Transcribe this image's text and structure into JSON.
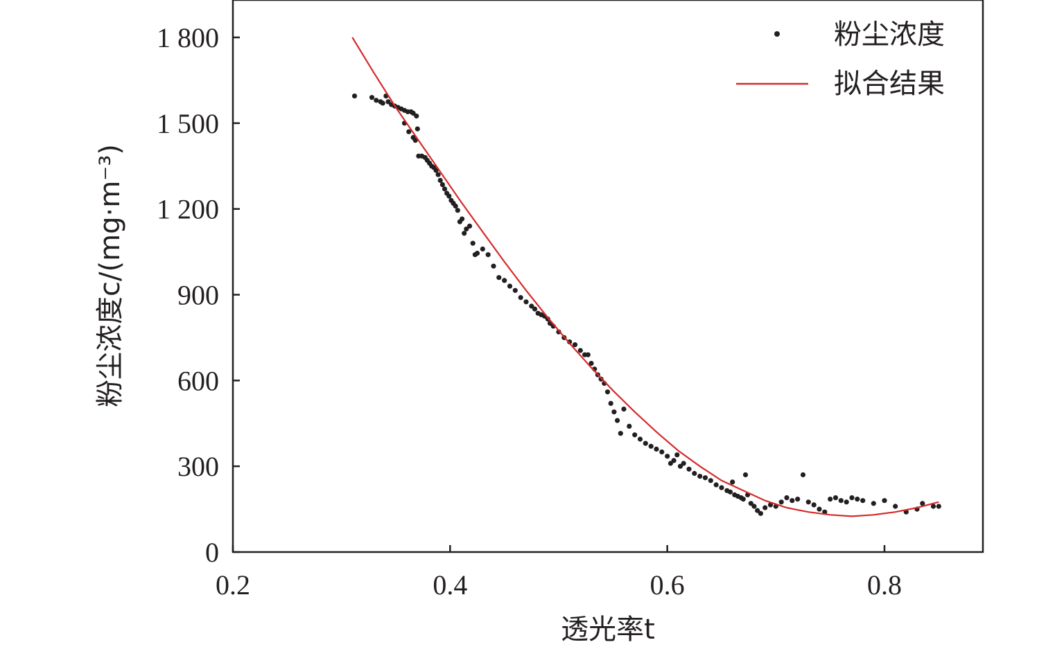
{
  "chart_data": {
    "type": "scatter",
    "xlabel": "透光率t",
    "ylabel": "粉尘浓度c/(mg·m⁻³)",
    "xlim": [
      0.2,
      0.9
    ],
    "ylim": [
      0,
      1950
    ],
    "x_ticks": [
      0.2,
      0.4,
      0.6,
      0.8
    ],
    "x_tick_labels": [
      "0.2",
      "0.4",
      "0.6",
      "0.8"
    ],
    "y_ticks": [
      0,
      300,
      600,
      900,
      1200,
      1500,
      1800
    ],
    "y_tick_labels": [
      "0",
      "300",
      "600",
      "900",
      "1 200",
      "1 500",
      "1 800"
    ],
    "legend": {
      "position": "top-right",
      "entries": [
        {
          "label": "粉尘浓度",
          "marker": "dot",
          "color": "#231f20"
        },
        {
          "label": "拟合结果",
          "marker": "line",
          "color": "#d62a2a"
        }
      ]
    },
    "grid": false,
    "series": [
      {
        "name": "粉尘浓度",
        "kind": "scatter",
        "color": "#231f20",
        "points": [
          [
            0.312,
            1595
          ],
          [
            0.328,
            1590
          ],
          [
            0.332,
            1580
          ],
          [
            0.336,
            1575
          ],
          [
            0.338,
            1570
          ],
          [
            0.341,
            1595
          ],
          [
            0.343,
            1575
          ],
          [
            0.346,
            1565
          ],
          [
            0.349,
            1560
          ],
          [
            0.352,
            1555
          ],
          [
            0.355,
            1550
          ],
          [
            0.358,
            1545
          ],
          [
            0.361,
            1540
          ],
          [
            0.364,
            1540
          ],
          [
            0.366,
            1535
          ],
          [
            0.369,
            1525
          ],
          [
            0.37,
            1480
          ],
          [
            0.358,
            1500
          ],
          [
            0.362,
            1470
          ],
          [
            0.366,
            1450
          ],
          [
            0.368,
            1440
          ],
          [
            0.371,
            1385
          ],
          [
            0.374,
            1385
          ],
          [
            0.377,
            1380
          ],
          [
            0.379,
            1370
          ],
          [
            0.381,
            1360
          ],
          [
            0.383,
            1350
          ],
          [
            0.385,
            1345
          ],
          [
            0.387,
            1335
          ],
          [
            0.389,
            1320
          ],
          [
            0.391,
            1300
          ],
          [
            0.393,
            1285
          ],
          [
            0.395,
            1270
          ],
          [
            0.397,
            1255
          ],
          [
            0.399,
            1245
          ],
          [
            0.401,
            1230
          ],
          [
            0.403,
            1220
          ],
          [
            0.405,
            1210
          ],
          [
            0.407,
            1195
          ],
          [
            0.409,
            1155
          ],
          [
            0.411,
            1165
          ],
          [
            0.413,
            1115
          ],
          [
            0.415,
            1130
          ],
          [
            0.418,
            1140
          ],
          [
            0.421,
            1080
          ],
          [
            0.423,
            1040
          ],
          [
            0.425,
            1045
          ],
          [
            0.43,
            1060
          ],
          [
            0.435,
            1040
          ],
          [
            0.44,
            1000
          ],
          [
            0.445,
            960
          ],
          [
            0.45,
            950
          ],
          [
            0.455,
            930
          ],
          [
            0.46,
            915
          ],
          [
            0.465,
            890
          ],
          [
            0.47,
            875
          ],
          [
            0.475,
            860
          ],
          [
            0.478,
            850
          ],
          [
            0.481,
            835
          ],
          [
            0.484,
            830
          ],
          [
            0.487,
            825
          ],
          [
            0.49,
            815
          ],
          [
            0.492,
            800
          ],
          [
            0.495,
            790
          ],
          [
            0.5,
            770
          ],
          [
            0.505,
            750
          ],
          [
            0.51,
            735
          ],
          [
            0.515,
            725
          ],
          [
            0.52,
            705
          ],
          [
            0.524,
            690
          ],
          [
            0.527,
            690
          ],
          [
            0.53,
            660
          ],
          [
            0.533,
            640
          ],
          [
            0.536,
            620
          ],
          [
            0.539,
            605
          ],
          [
            0.542,
            590
          ],
          [
            0.545,
            560
          ],
          [
            0.548,
            520
          ],
          [
            0.551,
            490
          ],
          [
            0.554,
            460
          ],
          [
            0.557,
            415
          ],
          [
            0.56,
            500
          ],
          [
            0.565,
            440
          ],
          [
            0.57,
            410
          ],
          [
            0.575,
            395
          ],
          [
            0.58,
            380
          ],
          [
            0.585,
            370
          ],
          [
            0.59,
            360
          ],
          [
            0.595,
            350
          ],
          [
            0.6,
            335
          ],
          [
            0.603,
            310
          ],
          [
            0.606,
            320
          ],
          [
            0.609,
            340
          ],
          [
            0.612,
            300
          ],
          [
            0.615,
            310
          ],
          [
            0.62,
            290
          ],
          [
            0.625,
            275
          ],
          [
            0.63,
            265
          ],
          [
            0.635,
            260
          ],
          [
            0.64,
            250
          ],
          [
            0.645,
            235
          ],
          [
            0.65,
            225
          ],
          [
            0.655,
            215
          ],
          [
            0.658,
            210
          ],
          [
            0.66,
            245
          ],
          [
            0.662,
            200
          ],
          [
            0.665,
            195
          ],
          [
            0.668,
            190
          ],
          [
            0.67,
            185
          ],
          [
            0.672,
            270
          ],
          [
            0.674,
            200
          ],
          [
            0.677,
            170
          ],
          [
            0.68,
            160
          ],
          [
            0.683,
            145
          ],
          [
            0.686,
            135
          ],
          [
            0.69,
            155
          ],
          [
            0.695,
            165
          ],
          [
            0.7,
            160
          ],
          [
            0.705,
            175
          ],
          [
            0.71,
            190
          ],
          [
            0.715,
            180
          ],
          [
            0.72,
            185
          ],
          [
            0.725,
            270
          ],
          [
            0.73,
            175
          ],
          [
            0.735,
            165
          ],
          [
            0.74,
            150
          ],
          [
            0.745,
            140
          ],
          [
            0.75,
            185
          ],
          [
            0.755,
            190
          ],
          [
            0.76,
            180
          ],
          [
            0.765,
            175
          ],
          [
            0.77,
            190
          ],
          [
            0.775,
            185
          ],
          [
            0.78,
            180
          ],
          [
            0.79,
            170
          ],
          [
            0.8,
            180
          ],
          [
            0.81,
            160
          ],
          [
            0.82,
            140
          ],
          [
            0.83,
            150
          ],
          [
            0.835,
            170
          ],
          [
            0.845,
            160
          ],
          [
            0.85,
            160
          ]
        ]
      },
      {
        "name": "拟合结果",
        "kind": "line",
        "color": "#d62a2a",
        "x": [
          0.31,
          0.33,
          0.35,
          0.37,
          0.39,
          0.41,
          0.43,
          0.45,
          0.47,
          0.49,
          0.51,
          0.53,
          0.55,
          0.57,
          0.59,
          0.61,
          0.63,
          0.65,
          0.67,
          0.69,
          0.71,
          0.73,
          0.75,
          0.77,
          0.79,
          0.81,
          0.83,
          0.85
        ],
        "y": [
          1800,
          1675,
          1555,
          1445,
          1335,
          1225,
          1120,
          1015,
          915,
          820,
          730,
          645,
          565,
          490,
          420,
          355,
          300,
          250,
          215,
          180,
          155,
          140,
          130,
          125,
          130,
          140,
          155,
          175
        ]
      }
    ]
  }
}
